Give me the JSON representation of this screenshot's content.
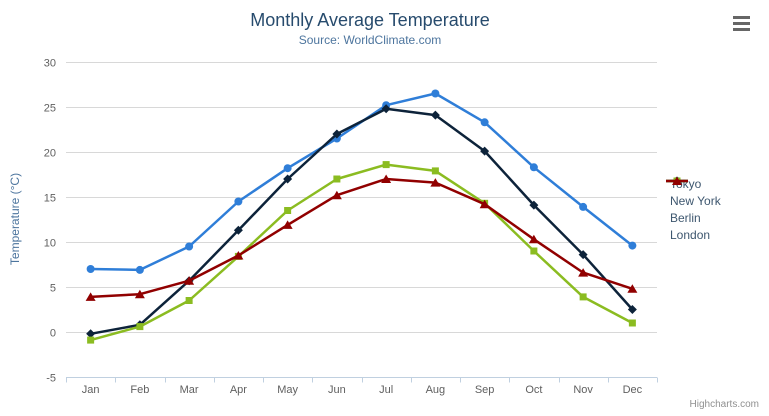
{
  "header": {
    "title": "Monthly Average Temperature",
    "subtitle": "Source: WorldClimate.com"
  },
  "credits": {
    "label": "Highcharts.com"
  },
  "colors": {
    "title": "#274b6d",
    "subtitle": "#4d759e",
    "axis_label": "#606060",
    "axis_title": "#4d759e",
    "grid": "#d8d8d8",
    "axis_line": "#c0d0e0",
    "legend_text": "#3e576f",
    "credits": "#909090",
    "export_icon": "#666666"
  },
  "chart_data": {
    "type": "line",
    "title": "Monthly Average Temperature",
    "subtitle": "Source: WorldClimate.com",
    "xlabel": "",
    "ylabel": "Temperature (°C)",
    "ylim": [
      -5,
      30
    ],
    "ytick_step": 5,
    "grid": true,
    "legend_position": "right",
    "categories": [
      "Jan",
      "Feb",
      "Mar",
      "Apr",
      "May",
      "Jun",
      "Jul",
      "Aug",
      "Sep",
      "Oct",
      "Nov",
      "Dec"
    ],
    "series": [
      {
        "name": "Tokyo",
        "color": "#2f7ed8",
        "marker": "circle",
        "values": [
          7.0,
          6.9,
          9.5,
          14.5,
          18.2,
          21.5,
          25.2,
          26.5,
          23.3,
          18.3,
          13.9,
          9.6
        ]
      },
      {
        "name": "New York",
        "color": "#0d233a",
        "marker": "diamond",
        "values": [
          -0.2,
          0.8,
          5.7,
          11.3,
          17.0,
          22.0,
          24.8,
          24.1,
          20.1,
          14.1,
          8.6,
          2.5
        ]
      },
      {
        "name": "Berlin",
        "color": "#8bbc21",
        "marker": "square",
        "values": [
          -0.9,
          0.6,
          3.5,
          8.4,
          13.5,
          17.0,
          18.6,
          17.9,
          14.3,
          9.0,
          3.9,
          1.0
        ]
      },
      {
        "name": "London",
        "color": "#910000",
        "marker": "triangle",
        "values": [
          3.9,
          4.2,
          5.7,
          8.5,
          11.9,
          15.2,
          17.0,
          16.6,
          14.2,
          10.3,
          6.6,
          4.8
        ]
      }
    ]
  }
}
